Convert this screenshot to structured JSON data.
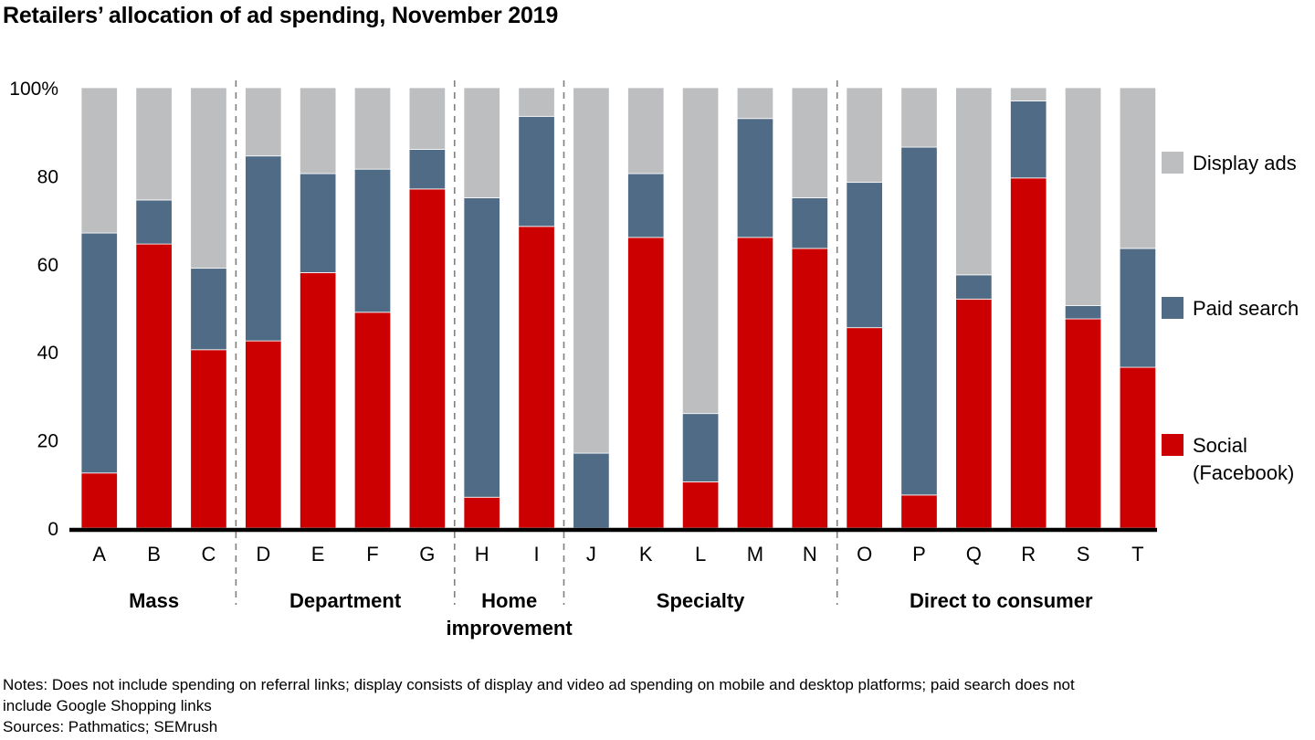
{
  "title": "Retailers’ allocation of ad spending, November 2019",
  "chart_data": {
    "type": "bar",
    "stacked": true,
    "title": "Retailers’ allocation of ad spending, November 2019",
    "xlabel": "",
    "ylabel": "",
    "ylim": [
      0,
      100
    ],
    "yticks": [
      0,
      20,
      40,
      60,
      80,
      100
    ],
    "ytick_labels": [
      "0",
      "20",
      "40",
      "60",
      "80",
      "100%"
    ],
    "grid": false,
    "legend_position": "right",
    "categories": [
      "A",
      "B",
      "C",
      "D",
      "E",
      "F",
      "G",
      "H",
      "I",
      "J",
      "K",
      "L",
      "M",
      "N",
      "O",
      "P",
      "Q",
      "R",
      "S",
      "T"
    ],
    "groups": [
      {
        "label": "Mass",
        "members": [
          "A",
          "B",
          "C"
        ]
      },
      {
        "label": "Department",
        "members": [
          "D",
          "E",
          "F",
          "G"
        ]
      },
      {
        "label": "Home improvement",
        "label_lines": [
          "Home",
          "improvement"
        ],
        "members": [
          "H",
          "I"
        ]
      },
      {
        "label": "Specialty",
        "members": [
          "J",
          "K",
          "L",
          "M",
          "N"
        ]
      },
      {
        "label": "Direct to consumer",
        "members": [
          "O",
          "P",
          "Q",
          "R",
          "S",
          "T"
        ]
      }
    ],
    "series": [
      {
        "name": "Social (Facebook)",
        "label_lines": [
          "Social",
          "(Facebook)"
        ],
        "color": "#cc0000",
        "values": [
          12.5,
          64.5,
          40.5,
          42.5,
          58,
          49,
          77,
          7,
          68.5,
          0,
          66,
          10.5,
          66,
          63.5,
          45.5,
          7.5,
          52,
          79.5,
          47.5,
          36.5
        ]
      },
      {
        "name": "Paid search",
        "label_lines": [
          "Paid search"
        ],
        "color": "#506b85",
        "values": [
          54.5,
          10,
          18.5,
          42,
          22.5,
          32.5,
          9,
          68,
          25,
          17,
          14.5,
          15.5,
          27,
          11.5,
          33,
          79,
          5.5,
          17.5,
          3,
          27
        ]
      },
      {
        "name": "Display ads",
        "label_lines": [
          "Display ads"
        ],
        "color": "#bdbec0",
        "values": [
          33,
          25.5,
          41,
          15.5,
          19.5,
          18.5,
          14,
          25,
          6.5,
          83,
          19.5,
          74,
          7,
          25,
          21.5,
          13.5,
          42.5,
          3,
          49.5,
          36.5
        ]
      }
    ]
  },
  "notes": {
    "line1": "Notes: Does not include spending on referral links; display consists of display and video ad spending on mobile and desktop platforms; paid search does not",
    "line2": "include Google Shopping links",
    "sources": "Sources: Pathmatics; SEMrush"
  }
}
